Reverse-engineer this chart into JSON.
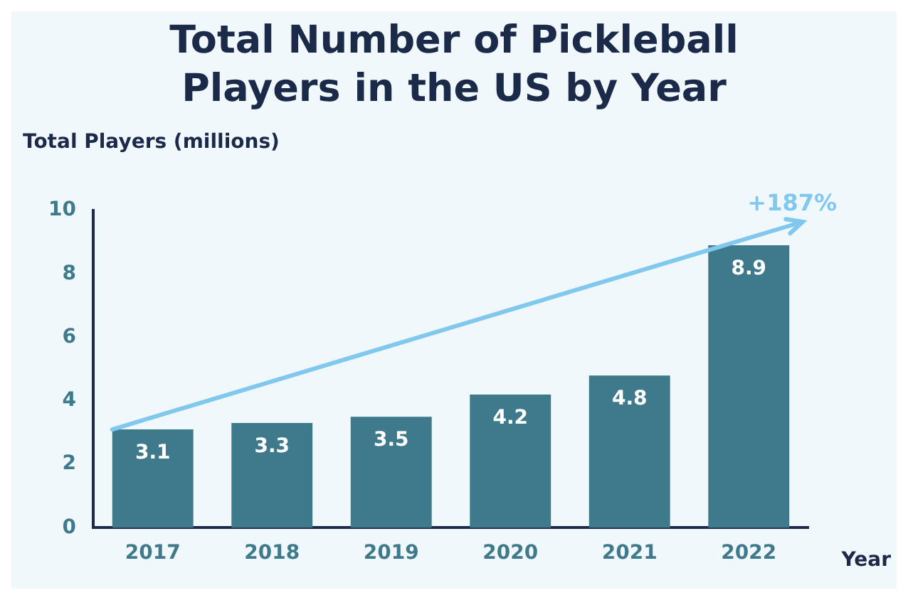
{
  "chart_data": {
    "type": "bar",
    "title": "Total Number of Pickleball Players in the US by Year",
    "xlabel": "Year",
    "ylabel": "Total Players (millions)",
    "categories": [
      "2017",
      "2018",
      "2019",
      "2020",
      "2021",
      "2022"
    ],
    "values": [
      3.1,
      3.3,
      3.5,
      4.2,
      4.8,
      8.9
    ],
    "color": "#3f7a8c",
    "ylim": [
      0,
      10
    ],
    "yticks": [
      0,
      2,
      4,
      6,
      8,
      10
    ],
    "grid": false,
    "legend": false,
    "data_labels": true,
    "annotations": [
      "+187%"
    ]
  }
}
